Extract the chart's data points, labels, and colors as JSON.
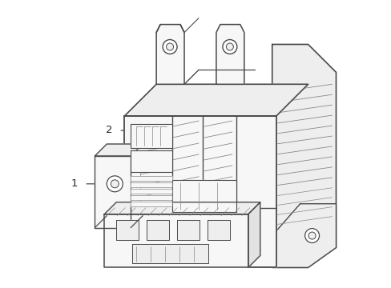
{
  "bg_color": "#ffffff",
  "line_color": "#4a4a4a",
  "line_color_light": "#888888",
  "figsize": [
    4.89,
    3.6
  ],
  "dpi": 100
}
